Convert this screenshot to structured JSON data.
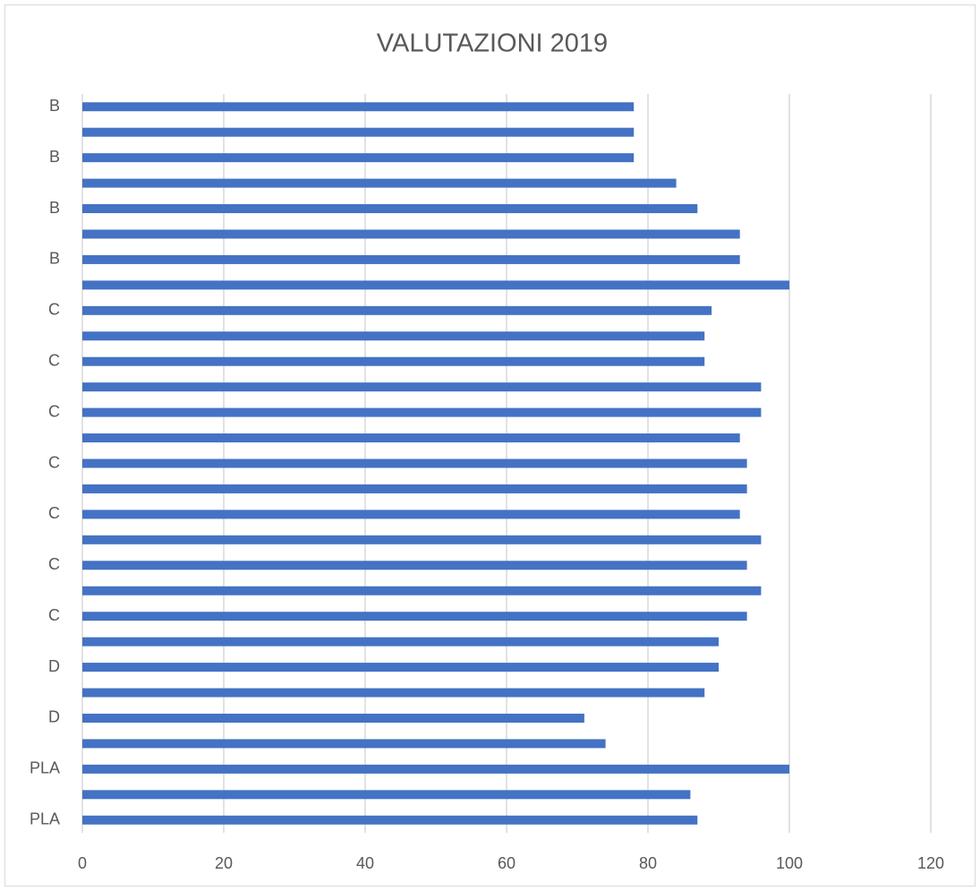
{
  "chart_data": {
    "type": "barh",
    "title": "VALUTAZIONI 2019",
    "categories": [
      "B",
      null,
      "B",
      null,
      "B",
      null,
      "B",
      null,
      "C",
      null,
      "C",
      null,
      "C",
      null,
      "C",
      null,
      "C",
      null,
      "C",
      null,
      "C",
      null,
      "D",
      null,
      "D",
      null,
      "PLA",
      null,
      "PLA"
    ],
    "values": [
      78,
      78,
      78,
      84,
      87,
      93,
      93,
      100,
      89,
      88,
      88,
      96,
      96,
      93,
      94,
      94,
      93,
      96,
      94,
      96,
      94,
      90,
      90,
      88,
      71,
      74,
      100,
      86,
      87
    ],
    "color": "#4472c4",
    "xlim": [
      0,
      120
    ],
    "xticks": [
      0,
      20,
      40,
      60,
      80,
      100,
      120
    ],
    "grid": true
  }
}
